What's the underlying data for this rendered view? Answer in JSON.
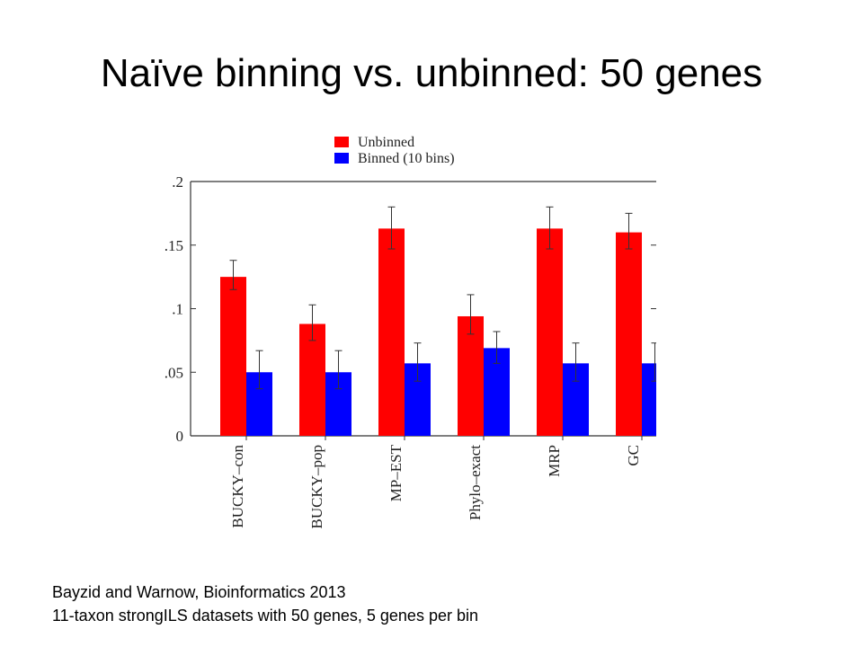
{
  "slide": {
    "title": "Naïve binning vs. unbinned: 50 genes",
    "caption_line1": "Bayzid and Warnow, Bioinformatics 2013",
    "caption_line2": "11-taxon strongILS datasets with 50 genes, 5 genes per bin"
  },
  "chart_data": {
    "type": "bar",
    "title": "",
    "xlabel": "",
    "ylabel": "",
    "ylim": [
      0,
      0.2
    ],
    "y_ticks": [
      ".2",
      ".15",
      ".1",
      ".05",
      "0"
    ],
    "y_tick_values": [
      0.2,
      0.15,
      0.1,
      0.05,
      0
    ],
    "categories": [
      "BUCKY–con",
      "BUCKY–pop",
      "MP–EST",
      "Phylo–exact",
      "MRP",
      "GC"
    ],
    "legend_position": "top-left",
    "grid": false,
    "series": [
      {
        "name": "Unbinned",
        "color": "#ff0000",
        "values": [
          0.125,
          0.088,
          0.163,
          0.094,
          0.163,
          0.16
        ],
        "err_high": [
          0.138,
          0.103,
          0.18,
          0.111,
          0.18,
          0.175
        ],
        "err_low": [
          0.115,
          0.075,
          0.147,
          0.08,
          0.147,
          0.147
        ]
      },
      {
        "name": "Binned (10 bins)",
        "color": "#0000ff",
        "values": [
          0.05,
          0.05,
          0.057,
          0.069,
          0.057,
          0.057
        ],
        "err_high": [
          0.067,
          0.067,
          0.073,
          0.082,
          0.073,
          0.073
        ],
        "err_low": [
          0.037,
          0.037,
          0.043,
          0.057,
          0.043,
          0.043
        ]
      }
    ]
  }
}
